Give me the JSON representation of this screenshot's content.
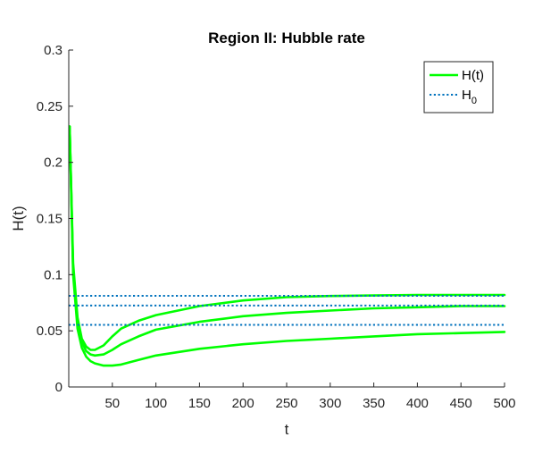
{
  "chart_data": {
    "type": "line",
    "title": "Region II: Hubble rate",
    "xlabel": "t",
    "ylabel": "H(t)",
    "xlim": [
      0,
      500
    ],
    "ylim": [
      0,
      0.3
    ],
    "xticks": [
      50,
      100,
      150,
      200,
      250,
      300,
      350,
      400,
      450,
      500
    ],
    "xtick_labels": [
      "50",
      "100",
      "150",
      "200",
      "250",
      "300",
      "350",
      "400",
      "450",
      "500"
    ],
    "yticks": [
      0,
      0.05,
      0.1,
      0.15,
      0.2,
      0.25,
      0.3
    ],
    "ytick_labels": [
      "0",
      "0.05",
      "0.1",
      "0.15",
      "0.2",
      "0.25",
      "0.3"
    ],
    "grid": false,
    "legend_position": "top-right",
    "legend": [
      {
        "label": "H(t)",
        "base": "H(t)",
        "sub": "",
        "style": "solid",
        "color": "#00ff00"
      },
      {
        "label": "H0",
        "base": "H",
        "sub": "0",
        "style": "dotted",
        "color": "#0072bd"
      }
    ],
    "series": [
      {
        "kind": "curve",
        "color": "#00ff00",
        "x": [
          1,
          5,
          10,
          15,
          20,
          25,
          30,
          40,
          50,
          60,
          80,
          100,
          150,
          200,
          250,
          300,
          350,
          400,
          450,
          500
        ],
        "y": [
          0.232,
          0.11,
          0.062,
          0.043,
          0.036,
          0.033,
          0.033,
          0.037,
          0.045,
          0.052,
          0.059,
          0.064,
          0.072,
          0.077,
          0.08,
          0.081,
          0.0815,
          0.082,
          0.082,
          0.082
        ]
      },
      {
        "kind": "curve",
        "color": "#00ff00",
        "x": [
          1,
          5,
          10,
          15,
          20,
          25,
          30,
          40,
          50,
          60,
          80,
          100,
          150,
          200,
          250,
          300,
          350,
          400,
          450,
          500
        ],
        "y": [
          0.232,
          0.105,
          0.057,
          0.04,
          0.032,
          0.029,
          0.028,
          0.029,
          0.033,
          0.038,
          0.045,
          0.051,
          0.058,
          0.063,
          0.066,
          0.068,
          0.07,
          0.071,
          0.072,
          0.072
        ]
      },
      {
        "kind": "curve",
        "color": "#00ff00",
        "x": [
          1,
          5,
          10,
          15,
          20,
          25,
          30,
          40,
          50,
          60,
          80,
          100,
          150,
          200,
          250,
          300,
          350,
          400,
          450,
          500
        ],
        "y": [
          0.232,
          0.1,
          0.052,
          0.035,
          0.027,
          0.023,
          0.021,
          0.019,
          0.019,
          0.02,
          0.024,
          0.028,
          0.034,
          0.038,
          0.041,
          0.043,
          0.045,
          0.047,
          0.048,
          0.049
        ]
      },
      {
        "kind": "hline",
        "color": "#0072bd",
        "y": 0.0812
      },
      {
        "kind": "hline",
        "color": "#0072bd",
        "y": 0.0725
      },
      {
        "kind": "hline",
        "color": "#0072bd",
        "y": 0.0553
      }
    ]
  }
}
